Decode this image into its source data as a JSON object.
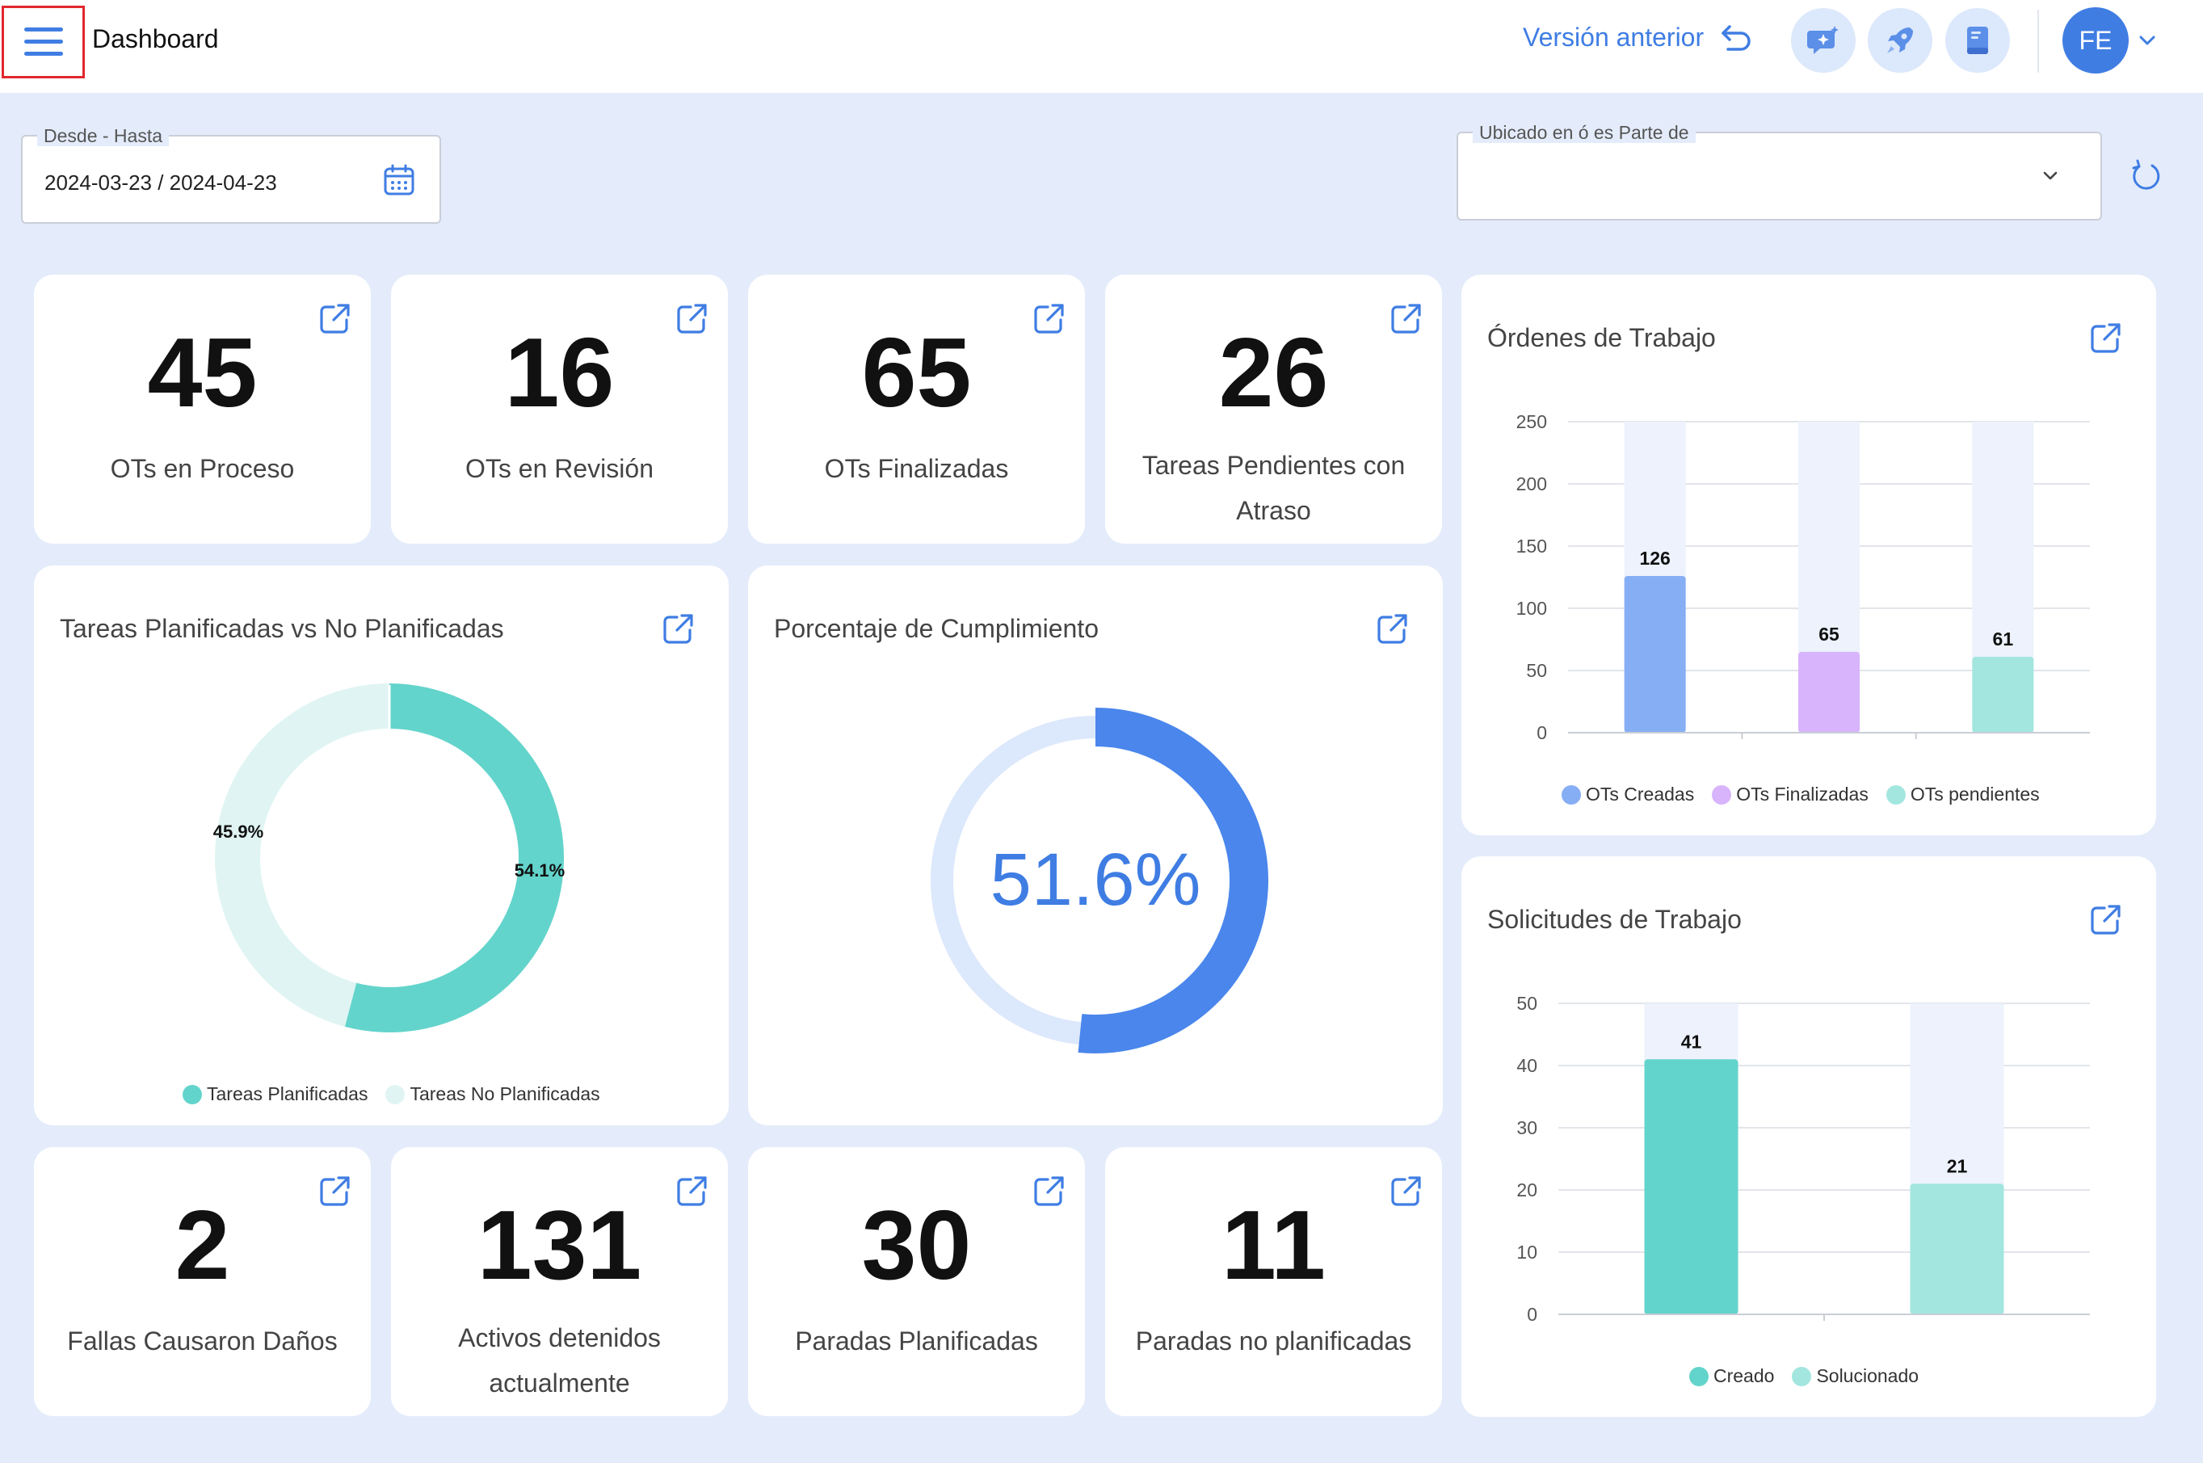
{
  "header": {
    "title": "Dashboard",
    "prev_version_label": "Versión anterior",
    "avatar_initials": "FE",
    "icons": [
      "menu-icon",
      "undo-icon",
      "chat-sparkle-icon",
      "rocket-icon",
      "book-icon",
      "chevron-down-icon"
    ]
  },
  "filters": {
    "date_label": "Desde - Hasta",
    "date_value": "2024-03-23 / 2024-04-23",
    "location_label": "Ubicado en ó es Parte de",
    "location_value": ""
  },
  "stats_top": [
    {
      "value": "45",
      "label": "OTs en Proceso"
    },
    {
      "value": "16",
      "label": "OTs en Revisión"
    },
    {
      "value": "65",
      "label": "OTs Finalizadas"
    },
    {
      "value": "26",
      "label_line1": "Tareas Pendientes con",
      "label_line2": "Atraso"
    }
  ],
  "stats_bottom": [
    {
      "value": "2",
      "label": "Fallas Causaron Daños"
    },
    {
      "value": "131",
      "label_line1": "Activos detenidos",
      "label_line2": "actualmente"
    },
    {
      "value": "30",
      "label": "Paradas Planificadas"
    },
    {
      "value": "11",
      "label": "Paradas no planificadas"
    }
  ],
  "donut": {
    "title": "Tareas Planificadas vs No Planificadas",
    "planned_label": "54.1%",
    "unplanned_label": "45.9%",
    "legend": [
      "Tareas Planificadas",
      "Tareas No Planificadas"
    ]
  },
  "gauge": {
    "title": "Porcentaje de Cumplimiento",
    "value_text": "51.6%"
  },
  "ordenes": {
    "title": "Órdenes de Trabajo"
  },
  "solicitudes": {
    "title": "Solicitudes de Trabajo"
  },
  "colors": {
    "accent": "#3f7de3",
    "teal": "#63d4cb",
    "teal_light": "#e0f5f3",
    "blue_bar": "#86aef4",
    "purple_bar": "#d8b4fc",
    "mint_bar": "#a3e6df",
    "bar_bg": "#edf2fc"
  },
  "chart_data": [
    {
      "type": "pie",
      "title": "Tareas Planificadas vs No Planificadas",
      "categories": [
        "Tareas Planificadas",
        "Tareas No Planificadas"
      ],
      "values": [
        54.1,
        45.9
      ],
      "unit": "%",
      "legend": "bottom"
    },
    {
      "type": "pie",
      "title": "Porcentaje de Cumplimiento",
      "categories": [
        "Cumplimiento"
      ],
      "values": [
        51.6
      ],
      "unit": "%"
    },
    {
      "type": "bar",
      "title": "Órdenes de Trabajo",
      "categories": [
        "OTs Creadas",
        "OTs Finalizadas",
        "OTs pendientes"
      ],
      "values": [
        126,
        65,
        61
      ],
      "colors": [
        "#86aef4",
        "#d8b4fc",
        "#a3e6df"
      ],
      "ylim": [
        0,
        250
      ],
      "yticks": [
        0,
        50,
        100,
        150,
        200,
        250
      ],
      "grid": true,
      "legend": "bottom"
    },
    {
      "type": "bar",
      "title": "Solicitudes de Trabajo",
      "categories": [
        "Creado",
        "Solucionado"
      ],
      "values": [
        41,
        21
      ],
      "colors": [
        "#63d4cb",
        "#a3e6df"
      ],
      "ylim": [
        0,
        50
      ],
      "yticks": [
        0,
        10,
        20,
        30,
        40,
        50
      ],
      "grid": true,
      "legend": "bottom"
    }
  ]
}
